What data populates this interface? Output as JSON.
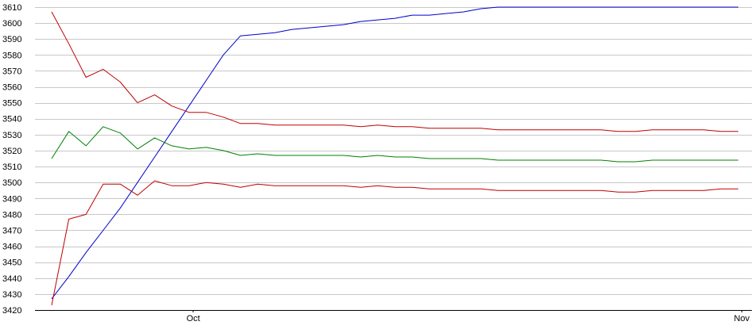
{
  "chart_data": {
    "type": "line",
    "title": "",
    "xlabel": "",
    "ylabel": "",
    "ylim": [
      3420,
      3610
    ],
    "y_ticks": [
      3420,
      3430,
      3440,
      3450,
      3460,
      3470,
      3480,
      3490,
      3500,
      3510,
      3520,
      3530,
      3540,
      3550,
      3560,
      3570,
      3580,
      3590,
      3600,
      3610
    ],
    "x_tick_labels": [
      {
        "label": "Oct",
        "index": 8.25
      },
      {
        "label": "Nov",
        "index": 40.2
      }
    ],
    "grid": {
      "horizontal": true,
      "vertical": false
    },
    "legend": "none",
    "x": [
      0,
      1,
      2,
      3,
      4,
      5,
      6,
      7,
      8,
      9,
      10,
      11,
      12,
      13,
      14,
      15,
      16,
      17,
      18,
      19,
      20,
      21,
      22,
      23,
      24,
      25,
      26,
      27,
      28,
      29,
      30,
      31,
      32,
      33,
      34,
      35,
      36,
      37,
      38,
      39,
      40
    ],
    "series": [
      {
        "color": "#0000cc",
        "values": [
          3427,
          3441,
          3456,
          3470,
          3484,
          3500,
          3516,
          3532,
          3548,
          3564,
          3580,
          3592,
          3593,
          3594,
          3596,
          3597,
          3598,
          3599,
          3601,
          3602,
          3603,
          3605,
          3605,
          3606,
          3607,
          3609,
          3610,
          3610,
          3610,
          3610,
          3610,
          3610,
          3610,
          3610,
          3610,
          3610,
          3610,
          3610,
          3610,
          3610,
          3610
        ]
      },
      {
        "color": "#c00000",
        "values": [
          3607,
          3587,
          3566,
          3571,
          3563,
          3550,
          3555,
          3548,
          3544,
          3544,
          3541,
          3537,
          3537,
          3536,
          3536,
          3536,
          3536,
          3536,
          3535,
          3536,
          3535,
          3535,
          3534,
          3534,
          3534,
          3534,
          3533,
          3533,
          3533,
          3533,
          3533,
          3533,
          3533,
          3532,
          3532,
          3533,
          3533,
          3533,
          3533,
          3532,
          3532
        ]
      },
      {
        "color": "#008000",
        "values": [
          3515,
          3532,
          3523,
          3535,
          3531,
          3521,
          3528,
          3523,
          3521,
          3522,
          3520,
          3517,
          3518,
          3517,
          3517,
          3517,
          3517,
          3517,
          3516,
          3517,
          3516,
          3516,
          3515,
          3515,
          3515,
          3515,
          3514,
          3514,
          3514,
          3514,
          3514,
          3514,
          3514,
          3513,
          3513,
          3514,
          3514,
          3514,
          3514,
          3514,
          3514
        ]
      },
      {
        "color": "#c00000",
        "values": [
          3423,
          3477,
          3480,
          3499,
          3499,
          3492,
          3501,
          3498,
          3498,
          3500,
          3499,
          3497,
          3499,
          3498,
          3498,
          3498,
          3498,
          3498,
          3497,
          3498,
          3497,
          3497,
          3496,
          3496,
          3496,
          3496,
          3495,
          3495,
          3495,
          3495,
          3495,
          3495,
          3495,
          3494,
          3494,
          3495,
          3495,
          3495,
          3495,
          3496,
          3496
        ]
      }
    ]
  }
}
